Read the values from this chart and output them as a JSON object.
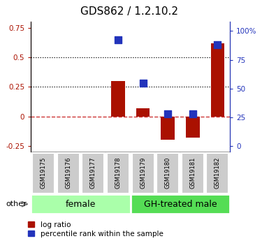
{
  "title": "GDS862 / 1.2.10.2",
  "samples": [
    "GSM19175",
    "GSM19176",
    "GSM19177",
    "GSM19178",
    "GSM19179",
    "GSM19180",
    "GSM19181",
    "GSM19182"
  ],
  "log_ratio": [
    0.0,
    0.0,
    0.0,
    0.3,
    0.07,
    -0.2,
    -0.18,
    0.62
  ],
  "percentile_rank": [
    null,
    null,
    null,
    92,
    55,
    28,
    28,
    88
  ],
  "groups": [
    {
      "label": "female",
      "indices": [
        0,
        1,
        2,
        3
      ],
      "color": "#aaffaa"
    },
    {
      "label": "GH-treated male",
      "indices": [
        4,
        5,
        6,
        7
      ],
      "color": "#55dd55"
    }
  ],
  "ylim_left": [
    -0.3,
    0.8
  ],
  "ylim_right": [
    -4.8,
    108
  ],
  "yticks_left": [
    -0.25,
    0.0,
    0.25,
    0.5,
    0.75
  ],
  "ytick_labels_left": [
    "-0.25",
    "0",
    "0.25",
    "0.5",
    "0.75"
  ],
  "yticks_right": [
    0,
    25,
    50,
    75,
    100
  ],
  "ytick_labels_right": [
    "0",
    "25",
    "50",
    "75",
    "100%"
  ],
  "bar_color": "#aa1100",
  "dot_color": "#2233bb",
  "hline_zero_color": "#cc3333",
  "hline_zero_style": "--",
  "dotted_lines": [
    0.25,
    0.5
  ],
  "bar_width": 0.55,
  "dot_size": 55,
  "title_fontsize": 11,
  "tick_fontsize": 7.5,
  "label_fontsize": 9,
  "group_label_fontsize": 9,
  "sample_fontsize": 6,
  "legend_fontsize": 7.5,
  "other_fontsize": 8
}
